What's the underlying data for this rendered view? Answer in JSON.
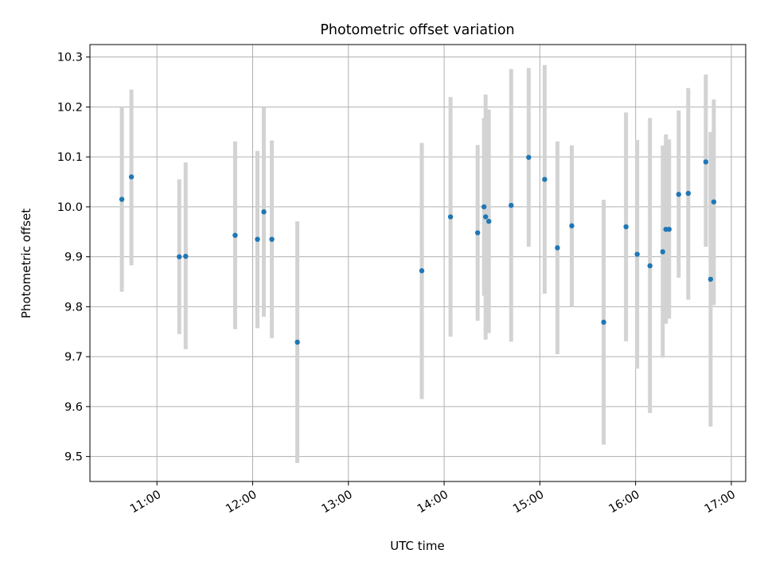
{
  "chart_data": {
    "type": "scatter",
    "title": "Photometric offset variation",
    "xlabel": "UTC time",
    "ylabel": "Photometric offset",
    "x_axis": "time",
    "xlim": [
      "10:18",
      "17:09"
    ],
    "ylim": [
      9.45,
      10.325
    ],
    "x_ticks": [
      "11:00",
      "12:00",
      "13:00",
      "14:00",
      "15:00",
      "16:00",
      "17:00"
    ],
    "y_ticks": [
      "9.5",
      "9.6",
      "9.7",
      "9.8",
      "9.9",
      "10.0",
      "10.1",
      "10.2",
      "10.3"
    ],
    "grid": true,
    "marker_color": "#1f77b4",
    "errorbar_color": "#d3d3d3",
    "points": [
      {
        "time": "10:38",
        "y": 10.015,
        "yerr_low": 9.83,
        "yerr_high": 10.2
      },
      {
        "time": "10:44",
        "y": 10.06,
        "yerr_low": 9.883,
        "yerr_high": 10.235
      },
      {
        "time": "11:14",
        "y": 9.9,
        "yerr_low": 9.745,
        "yerr_high": 10.055
      },
      {
        "time": "11:18",
        "y": 9.901,
        "yerr_low": 9.715,
        "yerr_high": 10.089
      },
      {
        "time": "11:49",
        "y": 9.943,
        "yerr_low": 9.755,
        "yerr_high": 10.131
      },
      {
        "time": "12:03",
        "y": 9.935,
        "yerr_low": 9.757,
        "yerr_high": 10.112
      },
      {
        "time": "12:07",
        "y": 9.99,
        "yerr_low": 9.78,
        "yerr_high": 10.2
      },
      {
        "time": "12:12",
        "y": 9.935,
        "yerr_low": 9.737,
        "yerr_high": 10.133
      },
      {
        "time": "12:28",
        "y": 9.729,
        "yerr_low": 9.487,
        "yerr_high": 9.971
      },
      {
        "time": "13:46",
        "y": 9.872,
        "yerr_low": 9.615,
        "yerr_high": 10.128
      },
      {
        "time": "14:04",
        "y": 9.98,
        "yerr_low": 9.74,
        "yerr_high": 10.22
      },
      {
        "time": "14:21",
        "y": 9.948,
        "yerr_low": 9.772,
        "yerr_high": 10.124
      },
      {
        "time": "14:25",
        "y": 10.0,
        "yerr_low": 9.822,
        "yerr_high": 10.178
      },
      {
        "time": "14:26",
        "y": 9.98,
        "yerr_low": 9.734,
        "yerr_high": 10.225
      },
      {
        "time": "14:28",
        "y": 9.971,
        "yerr_low": 9.747,
        "yerr_high": 10.195
      },
      {
        "time": "14:42",
        "y": 10.003,
        "yerr_low": 9.73,
        "yerr_high": 10.276
      },
      {
        "time": "14:53",
        "y": 10.099,
        "yerr_low": 9.92,
        "yerr_high": 10.278
      },
      {
        "time": "15:03",
        "y": 10.055,
        "yerr_low": 9.826,
        "yerr_high": 10.284
      },
      {
        "time": "15:11",
        "y": 9.918,
        "yerr_low": 9.705,
        "yerr_high": 10.131
      },
      {
        "time": "15:20",
        "y": 9.962,
        "yerr_low": 9.8,
        "yerr_high": 10.123
      },
      {
        "time": "15:40",
        "y": 9.769,
        "yerr_low": 9.524,
        "yerr_high": 10.014
      },
      {
        "time": "15:54",
        "y": 9.96,
        "yerr_low": 9.731,
        "yerr_high": 10.189
      },
      {
        "time": "16:01",
        "y": 9.905,
        "yerr_low": 9.676,
        "yerr_high": 10.134
      },
      {
        "time": "16:09",
        "y": 9.882,
        "yerr_low": 9.587,
        "yerr_high": 10.178
      },
      {
        "time": "16:17",
        "y": 9.91,
        "yerr_low": 9.698,
        "yerr_high": 10.123
      },
      {
        "time": "16:19",
        "y": 9.955,
        "yerr_low": 9.766,
        "yerr_high": 10.145
      },
      {
        "time": "16:21",
        "y": 9.955,
        "yerr_low": 9.776,
        "yerr_high": 10.135
      },
      {
        "time": "16:27",
        "y": 10.025,
        "yerr_low": 9.858,
        "yerr_high": 10.193
      },
      {
        "time": "16:33",
        "y": 10.027,
        "yerr_low": 9.814,
        "yerr_high": 10.238
      },
      {
        "time": "16:44",
        "y": 10.09,
        "yerr_low": 9.92,
        "yerr_high": 10.265
      },
      {
        "time": "16:47",
        "y": 9.855,
        "yerr_low": 9.56,
        "yerr_high": 10.15
      },
      {
        "time": "16:49",
        "y": 10.01,
        "yerr_low": 9.803,
        "yerr_high": 10.215
      }
    ]
  }
}
